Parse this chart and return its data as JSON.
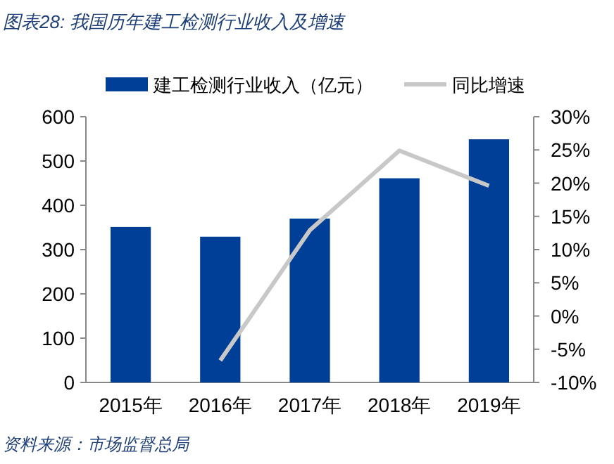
{
  "chart_data": {
    "type": "bar",
    "title": "图表28: 我国历年建工检测行业收入及增速",
    "categories": [
      "2015年",
      "2016年",
      "2017年",
      "2018年",
      "2019年"
    ],
    "series": [
      {
        "name": "建工检测行业收入（亿元）",
        "color": "#003f98",
        "values": [
          351,
          329,
          370,
          461,
          549
        ]
      },
      {
        "name": "同比增速",
        "type": "line",
        "axis": "y2",
        "color": "#c8c8c8",
        "values": [
          null,
          -6.7,
          12.9,
          24.9,
          19.6
        ]
      }
    ],
    "ylim": [
      0,
      600
    ],
    "yticks": [
      0,
      100,
      200,
      300,
      400,
      500,
      600
    ],
    "y2lim": [
      -10,
      30
    ],
    "y2ticks": [
      {
        "value": -10,
        "label": "-10%"
      },
      {
        "value": -5,
        "label": "-5%"
      },
      {
        "value": 0,
        "label": "0%"
      },
      {
        "value": 5,
        "label": "5%"
      },
      {
        "value": 10,
        "label": "10%"
      },
      {
        "value": 15,
        "label": "15%"
      },
      {
        "value": 20,
        "label": "20%"
      },
      {
        "value": 25,
        "label": "25%"
      },
      {
        "value": 30,
        "label": "30%"
      }
    ],
    "grid": false,
    "legend": "top",
    "marker": "none",
    "line_style": "solid",
    "annotations": [
      "资料来源：市场监督总局"
    ]
  }
}
